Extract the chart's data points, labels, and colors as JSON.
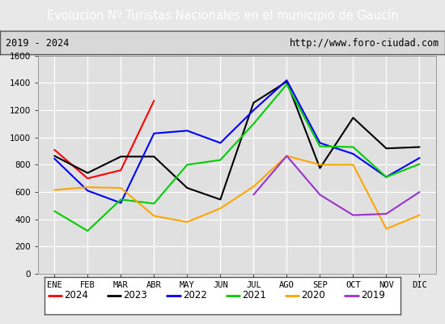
{
  "title": "Evolucion Nº Turistas Nacionales en el municipio de Gaucín",
  "subtitle_left": "2019 - 2024",
  "subtitle_right": "http://www.foro-ciudad.com",
  "title_bg_color": "#4d7cc7",
  "title_text_color": "#ffffff",
  "plot_bg_color": "#e8e8e8",
  "chart_bg_color": "#e8e8e8",
  "months": [
    "ENE",
    "FEB",
    "MAR",
    "ABR",
    "MAY",
    "JUN",
    "JUL",
    "AGO",
    "SEP",
    "OCT",
    "NOV",
    "DIC"
  ],
  "ylim": [
    0,
    1600
  ],
  "yticks": [
    0,
    200,
    400,
    600,
    800,
    1000,
    1200,
    1400,
    1600
  ],
  "series": {
    "2024": {
      "color": "#ff0000",
      "data": [
        910,
        700,
        760,
        1270,
        null,
        null,
        null,
        null,
        null,
        null,
        null,
        null
      ]
    },
    "2023": {
      "color": "#000000",
      "data": [
        865,
        740,
        860,
        860,
        630,
        545,
        1255,
        1410,
        775,
        1145,
        920,
        930
      ]
    },
    "2022": {
      "color": "#0000ff",
      "data": [
        845,
        610,
        520,
        1030,
        1050,
        960,
        1200,
        1420,
        960,
        880,
        710,
        850
      ]
    },
    "2021": {
      "color": "#00cc00",
      "data": [
        460,
        315,
        545,
        515,
        800,
        835,
        1100,
        1390,
        935,
        930,
        710,
        805
      ]
    },
    "2020": {
      "color": "#ffa500",
      "data": [
        615,
        635,
        630,
        425,
        380,
        480,
        640,
        865,
        800,
        800,
        330,
        430
      ]
    },
    "2019": {
      "color": "#9933cc",
      "data": [
        null,
        null,
        null,
        null,
        null,
        null,
        580,
        865,
        580,
        430,
        440,
        600
      ]
    }
  },
  "legend_order": [
    "2024",
    "2023",
    "2022",
    "2021",
    "2020",
    "2019"
  ],
  "title_fontsize": 10.5,
  "tick_fontsize": 7.5,
  "legend_fontsize": 8.5
}
